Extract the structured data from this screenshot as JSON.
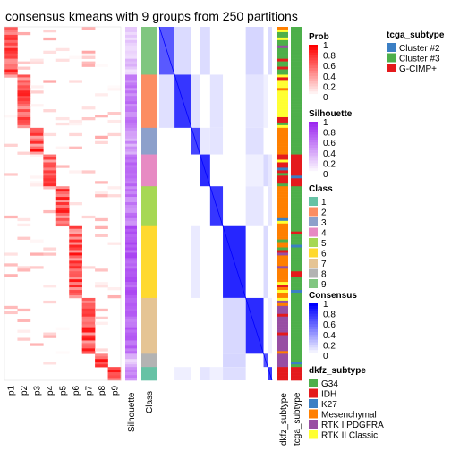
{
  "chart_data": {
    "type": "heatmap",
    "title": "consensus kmeans with 9 groups from 250 partitions",
    "membership_columns": [
      "p1",
      "p2",
      "p3",
      "p4",
      "p5",
      "p6",
      "p7",
      "p8",
      "p9"
    ],
    "silhouette_label": "Silhouette",
    "class_label": "Class",
    "annotation_labels": [
      "dkfz_subtype",
      "tcga_subtype"
    ],
    "row_blocks": [
      {
        "cls": 9,
        "n": 18,
        "col": 0,
        "sil": 0.25,
        "dk": "G34",
        "tc": "Cluster #3"
      },
      {
        "cls": 2,
        "n": 20,
        "col": 1,
        "sil": 0.6,
        "dk": "RTK II Classic",
        "tc": "Cluster #3"
      },
      {
        "cls": 3,
        "n": 10,
        "col": 2,
        "sil": 0.45,
        "dk": "Mesenchymal",
        "tc": "Cluster #3"
      },
      {
        "cls": 4,
        "n": 12,
        "col": 3,
        "sil": 0.7,
        "dk": "IDH",
        "tc": "G-CIMP+"
      },
      {
        "cls": 5,
        "n": 15,
        "col": 4,
        "sil": 0.6,
        "dk": "Mesenchymal",
        "tc": "Cluster #3"
      },
      {
        "cls": 6,
        "n": 27,
        "col": 5,
        "sil": 0.75,
        "dk": "Mesenchymal",
        "tc": "Cluster #3"
      },
      {
        "cls": 7,
        "n": 21,
        "col": 6,
        "sil": 0.7,
        "dk": "RTK I PDGFRA",
        "tc": "Cluster #3"
      },
      {
        "cls": 8,
        "n": 5,
        "col": 7,
        "sil": 0.3,
        "dk": "RTK I PDGFRA",
        "tc": "Cluster #3"
      },
      {
        "cls": 1,
        "n": 5,
        "col": 8,
        "sil": 0.55,
        "dk": "IDH",
        "tc": "G-CIMP+"
      }
    ],
    "legends": {
      "prob": {
        "title": "Prob",
        "ticks": [
          "1",
          "0.8",
          "0.6",
          "0.4",
          "0.2",
          "0"
        ]
      },
      "silhouette": {
        "title": "Silhouette",
        "ticks": [
          "1",
          "0.8",
          "0.6",
          "0.4",
          "0.2",
          "0"
        ]
      },
      "class": {
        "title": "Class",
        "items": [
          "1",
          "2",
          "3",
          "4",
          "5",
          "6",
          "7",
          "8",
          "9"
        ]
      },
      "consensus": {
        "title": "Consensus",
        "ticks": [
          "1",
          "0.8",
          "0.6",
          "0.4",
          "0.2",
          "0"
        ]
      },
      "tcga_subtype": {
        "title": "tcga_subtype",
        "items": [
          "Cluster #2",
          "Cluster #3",
          "G-CIMP+"
        ]
      },
      "dkfz_subtype": {
        "title": "dkfz_subtype",
        "items": [
          "G34",
          "IDH",
          "K27",
          "Mesenchymal",
          "RTK I PDGFRA",
          "RTK II Classic"
        ]
      }
    },
    "colors": {
      "class": [
        "#66C2A5",
        "#FC8D62",
        "#8DA0CB",
        "#E78AC3",
        "#A6D854",
        "#FFD92F",
        "#E5C494",
        "#B3B3B3",
        "#80C680"
      ],
      "prob_high": "#ff0000",
      "silhouette_high": "#9c27f0",
      "consensus_high": "#0000ff",
      "tcga": {
        "Cluster #2": "#3B7FC4",
        "Cluster #3": "#4DAF4A",
        "G-CIMP+": "#E41A1C"
      },
      "dkfz": {
        "G34": "#4DAF4A",
        "IDH": "#E41A1C",
        "K27": "#3B7FC4",
        "Mesenchymal": "#FF7F00",
        "RTK I PDGFRA": "#984EA3",
        "RTK II Classic": "#FFFF33"
      }
    }
  }
}
